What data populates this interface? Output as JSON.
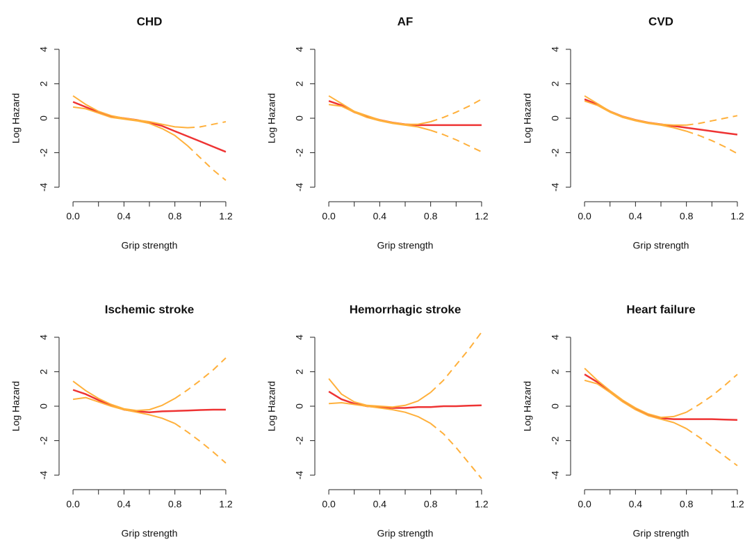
{
  "chart_data": [
    {
      "type": "line",
      "title": "CHD",
      "xlabel": "Grip strength",
      "ylabel": "Log Hazard",
      "x": [
        0,
        0.1,
        0.2,
        0.3,
        0.4,
        0.5,
        0.6,
        0.7,
        0.8,
        0.9,
        1.0,
        1.1,
        1.2
      ],
      "xlim": [
        -0.055,
        1.255
      ],
      "ylim": [
        -4.44,
        4.44
      ],
      "xticks": [
        {
          "value": 0,
          "label": "0.0"
        },
        {
          "value": 0.2,
          "label": null
        },
        0.4,
        {
          "value": 0.6,
          "label": null
        },
        0.8,
        {
          "value": 1.0,
          "label": null
        },
        1.2
      ],
      "yticks": [
        -4,
        -2,
        0,
        2,
        4
      ],
      "series": [
        {
          "color": "#ee3333",
          "dash": false,
          "values": [
            0.95,
            0.65,
            0.35,
            0.1,
            0,
            -0.1,
            -0.25,
            -0.45,
            -0.75,
            -1.05,
            -1.35,
            -1.65,
            -1.95
          ]
        },
        {
          "color": "#ffb03b",
          "dash": false,
          "values": [
            1.3,
            0.8,
            0.4,
            0.15,
            0,
            -0.1,
            -0.2,
            -0.35,
            -0.5,
            -0.55,
            null,
            null,
            null
          ]
        },
        {
          "color": "#ffb03b",
          "dash": true,
          "values": [
            null,
            null,
            null,
            null,
            null,
            null,
            null,
            null,
            null,
            -0.55,
            -0.5,
            -0.35,
            -0.2
          ]
        },
        {
          "color": "#ffb03b",
          "dash": false,
          "values": [
            0.65,
            0.55,
            0.3,
            0.05,
            -0.05,
            -0.15,
            -0.3,
            -0.6,
            -1.0,
            -1.6,
            null,
            null,
            null
          ]
        },
        {
          "color": "#ffb03b",
          "dash": true,
          "values": [
            null,
            null,
            null,
            null,
            null,
            null,
            null,
            null,
            null,
            -1.6,
            -2.3,
            -3.0,
            -3.6
          ]
        }
      ]
    },
    {
      "type": "line",
      "title": "AF",
      "xlabel": "Grip strength",
      "ylabel": "Log Hazard",
      "x": [
        0,
        0.1,
        0.2,
        0.3,
        0.4,
        0.5,
        0.6,
        0.7,
        0.8,
        0.9,
        1.0,
        1.1,
        1.2
      ],
      "xlim": [
        -0.055,
        1.255
      ],
      "ylim": [
        -4.44,
        4.44
      ],
      "xticks": [
        {
          "value": 0,
          "label": "0.0"
        },
        {
          "value": 0.2,
          "label": null
        },
        0.4,
        {
          "value": 0.6,
          "label": null
        },
        0.8,
        {
          "value": 1.0,
          "label": null
        },
        1.2
      ],
      "yticks": [
        -4,
        -2,
        0,
        2,
        4
      ],
      "series": [
        {
          "color": "#ee3333",
          "dash": false,
          "values": [
            1.0,
            0.75,
            0.35,
            0.1,
            -0.1,
            -0.25,
            -0.35,
            -0.4,
            -0.4,
            -0.4,
            -0.4,
            -0.4,
            -0.4
          ]
        },
        {
          "color": "#ffb03b",
          "dash": false,
          "values": [
            1.3,
            0.85,
            0.4,
            0.15,
            -0.1,
            -0.25,
            -0.35,
            -0.35,
            -0.2,
            null,
            null,
            null,
            null
          ]
        },
        {
          "color": "#ffb03b",
          "dash": true,
          "values": [
            null,
            null,
            null,
            null,
            null,
            null,
            null,
            null,
            -0.2,
            0.05,
            0.35,
            0.7,
            1.1
          ]
        },
        {
          "color": "#ffb03b",
          "dash": false,
          "values": [
            0.8,
            0.7,
            0.35,
            0.05,
            -0.15,
            -0.3,
            -0.4,
            -0.5,
            -0.7,
            null,
            null,
            null,
            null
          ]
        },
        {
          "color": "#ffb03b",
          "dash": true,
          "values": [
            null,
            null,
            null,
            null,
            null,
            null,
            null,
            null,
            -0.7,
            -0.95,
            -1.25,
            -1.6,
            -1.95
          ]
        }
      ]
    },
    {
      "type": "line",
      "title": "CVD",
      "xlabel": "Grip strength",
      "ylabel": "Log Hazard",
      "x": [
        0,
        0.1,
        0.2,
        0.3,
        0.4,
        0.5,
        0.6,
        0.7,
        0.8,
        0.9,
        1.0,
        1.1,
        1.2
      ],
      "xlim": [
        -0.055,
        1.255
      ],
      "ylim": [
        -4.44,
        4.44
      ],
      "xticks": [
        {
          "value": 0,
          "label": "0.0"
        },
        {
          "value": 0.2,
          "label": null
        },
        0.4,
        {
          "value": 0.6,
          "label": null
        },
        0.8,
        {
          "value": 1.0,
          "label": null
        },
        1.2
      ],
      "yticks": [
        -4,
        -2,
        0,
        2,
        4
      ],
      "series": [
        {
          "color": "#ee3333",
          "dash": false,
          "values": [
            1.1,
            0.8,
            0.4,
            0.1,
            -0.1,
            -0.25,
            -0.35,
            -0.45,
            -0.55,
            -0.65,
            -0.75,
            -0.85,
            -0.95
          ]
        },
        {
          "color": "#ffb03b",
          "dash": false,
          "values": [
            1.3,
            0.85,
            0.4,
            0.1,
            -0.1,
            -0.25,
            -0.35,
            -0.4,
            -0.4,
            null,
            null,
            null,
            null
          ]
        },
        {
          "color": "#ffb03b",
          "dash": true,
          "values": [
            null,
            null,
            null,
            null,
            null,
            null,
            null,
            null,
            -0.4,
            -0.3,
            -0.15,
            0,
            0.15
          ]
        },
        {
          "color": "#ffb03b",
          "dash": false,
          "values": [
            1.0,
            0.75,
            0.35,
            0.05,
            -0.15,
            -0.3,
            -0.4,
            -0.55,
            -0.75,
            null,
            null,
            null,
            null
          ]
        },
        {
          "color": "#ffb03b",
          "dash": true,
          "values": [
            null,
            null,
            null,
            null,
            null,
            null,
            null,
            null,
            -0.75,
            -1.0,
            -1.3,
            -1.65,
            -2.05
          ]
        }
      ]
    },
    {
      "type": "line",
      "title": "Ischemic stroke",
      "xlabel": "Grip strength",
      "ylabel": "Log Hazard",
      "x": [
        0,
        0.1,
        0.2,
        0.3,
        0.4,
        0.5,
        0.6,
        0.7,
        0.8,
        0.9,
        1.0,
        1.1,
        1.2
      ],
      "xlim": [
        -0.055,
        1.255
      ],
      "ylim": [
        -4.44,
        4.44
      ],
      "xticks": [
        {
          "value": 0,
          "label": "0.0"
        },
        {
          "value": 0.2,
          "label": null
        },
        0.4,
        {
          "value": 0.6,
          "label": null
        },
        0.8,
        {
          "value": 1.0,
          "label": null
        },
        1.2
      ],
      "yticks": [
        -4,
        -2,
        0,
        2,
        4
      ],
      "series": [
        {
          "color": "#ee3333",
          "dash": false,
          "values": [
            0.95,
            0.7,
            0.35,
            0.05,
            -0.2,
            -0.3,
            -0.35,
            -0.3,
            -0.28,
            -0.25,
            -0.22,
            -0.2,
            -0.2
          ]
        },
        {
          "color": "#ffb03b",
          "dash": false,
          "values": [
            1.45,
            0.9,
            0.45,
            0.1,
            -0.15,
            -0.25,
            -0.2,
            0.05,
            0.45,
            null,
            null,
            null,
            null
          ]
        },
        {
          "color": "#ffb03b",
          "dash": true,
          "values": [
            null,
            null,
            null,
            null,
            null,
            null,
            null,
            null,
            0.45,
            0.95,
            1.5,
            2.1,
            2.8
          ]
        },
        {
          "color": "#ffb03b",
          "dash": false,
          "values": [
            0.4,
            0.5,
            0.25,
            0,
            -0.2,
            -0.35,
            -0.5,
            -0.7,
            -1.0,
            null,
            null,
            null,
            null
          ]
        },
        {
          "color": "#ffb03b",
          "dash": true,
          "values": [
            null,
            null,
            null,
            null,
            null,
            null,
            null,
            null,
            -1.0,
            -1.5,
            -2.05,
            -2.65,
            -3.3
          ]
        }
      ]
    },
    {
      "type": "line",
      "title": "Hemorrhagic stroke",
      "xlabel": "Grip strength",
      "ylabel": "Log Hazard",
      "x": [
        0,
        0.1,
        0.2,
        0.3,
        0.4,
        0.5,
        0.6,
        0.7,
        0.8,
        0.9,
        1.0,
        1.1,
        1.2
      ],
      "xlim": [
        -0.055,
        1.255
      ],
      "ylim": [
        -4.44,
        4.44
      ],
      "xticks": [
        {
          "value": 0,
          "label": "0.0"
        },
        {
          "value": 0.2,
          "label": null
        },
        0.4,
        {
          "value": 0.6,
          "label": null
        },
        0.8,
        {
          "value": 1.0,
          "label": null
        },
        1.2
      ],
      "yticks": [
        -4,
        -2,
        0,
        2,
        4
      ],
      "series": [
        {
          "color": "#ee3333",
          "dash": false,
          "values": [
            0.85,
            0.4,
            0.15,
            0,
            -0.05,
            -0.1,
            -0.1,
            -0.05,
            -0.05,
            0,
            0,
            0.03,
            0.05
          ]
        },
        {
          "color": "#ffb03b",
          "dash": false,
          "values": [
            1.6,
            0.7,
            0.25,
            0.05,
            0,
            -0.05,
            0.05,
            0.3,
            0.8,
            null,
            null,
            null,
            null
          ]
        },
        {
          "color": "#ffb03b",
          "dash": true,
          "values": [
            null,
            null,
            null,
            null,
            null,
            null,
            null,
            null,
            0.8,
            1.5,
            2.4,
            3.3,
            4.3
          ]
        },
        {
          "color": "#ffb03b",
          "dash": false,
          "values": [
            0.15,
            0.2,
            0.1,
            0,
            -0.1,
            -0.2,
            -0.35,
            -0.6,
            -1.0,
            null,
            null,
            null,
            null
          ]
        },
        {
          "color": "#ffb03b",
          "dash": true,
          "values": [
            null,
            null,
            null,
            null,
            null,
            null,
            null,
            null,
            -1.0,
            -1.6,
            -2.4,
            -3.3,
            -4.2
          ]
        }
      ]
    },
    {
      "type": "line",
      "title": "Heart failure",
      "xlabel": "Grip strength",
      "ylabel": "Log Hazard",
      "x": [
        0,
        0.1,
        0.2,
        0.3,
        0.4,
        0.5,
        0.6,
        0.7,
        0.8,
        0.9,
        1.0,
        1.1,
        1.2
      ],
      "xlim": [
        -0.055,
        1.255
      ],
      "ylim": [
        -4.44,
        4.44
      ],
      "xticks": [
        {
          "value": 0,
          "label": "0.0"
        },
        {
          "value": 0.2,
          "label": null
        },
        0.4,
        {
          "value": 0.6,
          "label": null
        },
        0.8,
        {
          "value": 1.0,
          "label": null
        },
        1.2
      ],
      "yticks": [
        -4,
        -2,
        0,
        2,
        4
      ],
      "series": [
        {
          "color": "#ee3333",
          "dash": false,
          "values": [
            1.85,
            1.4,
            0.85,
            0.3,
            -0.15,
            -0.5,
            -0.7,
            -0.75,
            -0.75,
            -0.75,
            -0.75,
            -0.78,
            -0.8
          ]
        },
        {
          "color": "#ffb03b",
          "dash": false,
          "values": [
            2.2,
            1.5,
            0.9,
            0.35,
            -0.1,
            -0.45,
            -0.65,
            -0.6,
            -0.35,
            null,
            null,
            null,
            null
          ]
        },
        {
          "color": "#ffb03b",
          "dash": true,
          "values": [
            null,
            null,
            null,
            null,
            null,
            null,
            null,
            null,
            -0.35,
            0.1,
            0.6,
            1.2,
            1.85
          ]
        },
        {
          "color": "#ffb03b",
          "dash": false,
          "values": [
            1.5,
            1.3,
            0.8,
            0.25,
            -0.2,
            -0.55,
            -0.75,
            -0.95,
            -1.3,
            null,
            null,
            null,
            null
          ]
        },
        {
          "color": "#ffb03b",
          "dash": true,
          "values": [
            null,
            null,
            null,
            null,
            null,
            null,
            null,
            null,
            -1.3,
            -1.8,
            -2.35,
            -2.9,
            -3.45
          ]
        }
      ]
    }
  ]
}
